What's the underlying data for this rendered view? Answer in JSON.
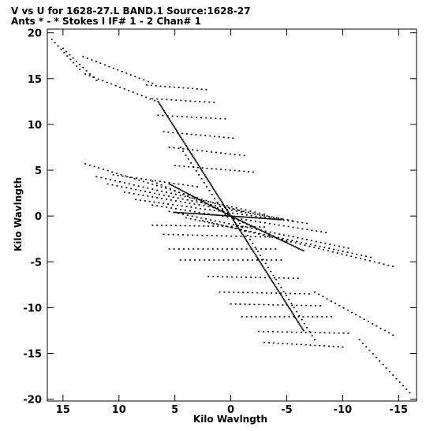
{
  "chart_data": {
    "type": "scatter",
    "title_line1": "V vs U for 1628-27.L BAND.1   Source:1628-27",
    "title_line2": "Ants * - *     Stokes I  IF# 1 - 2   Chan# 1",
    "xlabel": "Kilo Wavlngth",
    "ylabel": "Kilo Wavlngth",
    "xlim": [
      16.4,
      -16.6
    ],
    "ylim": [
      -20.2,
      20.4
    ],
    "x_ticks": [
      15,
      10,
      5,
      0,
      -5,
      -10,
      -15
    ],
    "x_tick_labels": [
      "15",
      "10",
      "5",
      "0",
      "-5",
      "-10",
      "-15"
    ],
    "y_ticks": [
      20,
      15,
      10,
      5,
      0,
      -5,
      -10,
      -15,
      -20
    ],
    "y_tick_labels": [
      "20",
      "15",
      "10",
      "5",
      "0",
      "-5",
      "-10",
      "-15",
      "-20"
    ],
    "grid": false,
    "marker_color": "#000000",
    "tracks": [
      {
        "u": [
          16.0,
          13.5
        ],
        "v": [
          19.3,
          16.0
        ]
      },
      {
        "u": [
          15.0,
          12.0
        ],
        "v": [
          18.3,
          14.8
        ]
      },
      {
        "u": [
          13.2,
          7.0
        ],
        "v": [
          17.4,
          14.5
        ]
      },
      {
        "u": [
          13.0,
          6.8
        ],
        "v": [
          15.5,
          12.6
        ]
      },
      {
        "u": [
          7.5,
          2.2
        ],
        "v": [
          14.3,
          13.8
        ]
      },
      {
        "u": [
          7.0,
          1.5
        ],
        "v": [
          12.8,
          12.4
        ]
      },
      {
        "u": [
          6.5,
          0.5
        ],
        "v": [
          11.0,
          10.6
        ]
      },
      {
        "u": [
          6.0,
          -0.2
        ],
        "v": [
          9.2,
          8.5
        ]
      },
      {
        "u": [
          5.5,
          -1.2
        ],
        "v": [
          7.5,
          6.6
        ]
      },
      {
        "u": [
          5.0,
          -2.0
        ],
        "v": [
          5.5,
          4.8
        ]
      },
      {
        "u": [
          10.5,
          3.0
        ],
        "v": [
          4.5,
          3.2
        ]
      },
      {
        "u": [
          13.0,
          -1.0
        ],
        "v": [
          5.7,
          0.5
        ]
      },
      {
        "u": [
          12.0,
          -3.0
        ],
        "v": [
          4.3,
          0.2
        ]
      },
      {
        "u": [
          11.0,
          -4.5
        ],
        "v": [
          3.5,
          -0.3
        ]
      },
      {
        "u": [
          9.5,
          -5.5
        ],
        "v": [
          2.6,
          -0.5
        ]
      },
      {
        "u": [
          8.5,
          -6.8
        ],
        "v": [
          1.8,
          -0.8
        ]
      },
      {
        "u": [
          7.0,
          -8.5
        ],
        "v": [
          1.2,
          -1.8
        ]
      },
      {
        "u": [
          5.5,
          -10.5
        ],
        "v": [
          0.5,
          -3.5
        ]
      },
      {
        "u": [
          4.0,
          -12.5
        ],
        "v": [
          -0.2,
          -4.5
        ]
      },
      {
        "u": [
          2.5,
          -14.5
        ],
        "v": [
          -0.5,
          -5.5
        ]
      },
      {
        "u": [
          7.0,
          -3.0
        ],
        "v": [
          -1.0,
          -1.2
        ]
      },
      {
        "u": [
          6.0,
          -3.5
        ],
        "v": [
          -2.0,
          -2.3
        ]
      },
      {
        "u": [
          5.5,
          -4.0
        ],
        "v": [
          -3.6,
          -3.6
        ]
      },
      {
        "u": [
          4.5,
          -4.5
        ],
        "v": [
          -4.8,
          -4.8
        ]
      },
      {
        "u": [
          2.0,
          -6.0
        ],
        "v": [
          -6.6,
          -6.8
        ]
      },
      {
        "u": [
          1.0,
          -7.0
        ],
        "v": [
          -8.3,
          -8.5
        ]
      },
      {
        "u": [
          0.0,
          -8.0
        ],
        "v": [
          -9.6,
          -9.8
        ]
      },
      {
        "u": [
          -1.0,
          -9.0
        ],
        "v": [
          -11.0,
          -11.0
        ]
      },
      {
        "u": [
          -2.5,
          -10.5
        ],
        "v": [
          -12.6,
          -12.8
        ]
      },
      {
        "u": [
          -3.0,
          -10.0
        ],
        "v": [
          -13.8,
          -14.3
        ]
      },
      {
        "u": [
          -7.5,
          -14.5
        ],
        "v": [
          -8.3,
          -13.0
        ]
      },
      {
        "u": [
          -11.5,
          -16.0
        ],
        "v": [
          -13.5,
          -19.3
        ]
      },
      {
        "u": [
          0.5,
          4.5
        ],
        "v": [
          0.2,
          7.5
        ]
      },
      {
        "u": [
          0.3,
          7.0
        ],
        "v": [
          0.3,
          3.8
        ]
      },
      {
        "u": [
          -0.3,
          -5.0
        ],
        "v": [
          -0.3,
          -2.8
        ]
      },
      {
        "u": [
          -0.8,
          -7.5
        ],
        "v": [
          -0.8,
          -13.5
        ]
      }
    ],
    "dense_tracks": [
      {
        "u": [
          0,
          6.5
        ],
        "v": [
          0,
          12.5
        ]
      },
      {
        "u": [
          0,
          5.5
        ],
        "v": [
          0,
          3.5
        ]
      },
      {
        "u": [
          0,
          5.0
        ],
        "v": [
          0,
          0.4
        ]
      },
      {
        "u": [
          0,
          -4.5
        ],
        "v": [
          0,
          -0.4
        ]
      },
      {
        "u": [
          0,
          -6.5
        ],
        "v": [
          0,
          -3.8
        ]
      },
      {
        "u": [
          0,
          -6.5
        ],
        "v": [
          0,
          -12.5
        ]
      }
    ]
  }
}
